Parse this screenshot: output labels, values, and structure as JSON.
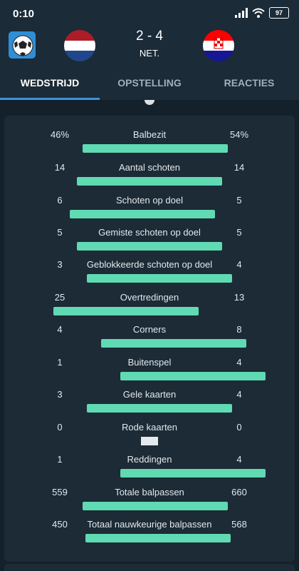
{
  "status_bar": {
    "time": "0:10",
    "battery": "97"
  },
  "match": {
    "score": "2 - 4",
    "status": "NET."
  },
  "tabs": [
    {
      "label": "WEDSTRIJD"
    },
    {
      "label": "OPSTELLING"
    },
    {
      "label": "REACTIES"
    }
  ],
  "stats": [
    {
      "label": "Balbezit",
      "home": "46%",
      "away": "54%"
    },
    {
      "label": "Aantal schoten",
      "home": "14",
      "away": "14"
    },
    {
      "label": "Schoten op doel",
      "home": "6",
      "away": "5"
    },
    {
      "label": "Gemiste schoten op doel",
      "home": "5",
      "away": "5"
    },
    {
      "label": "Geblokkeerde schoten op doel",
      "home": "3",
      "away": "4"
    },
    {
      "label": "Overtredingen",
      "home": "25",
      "away": "13"
    },
    {
      "label": "Corners",
      "home": "4",
      "away": "8"
    },
    {
      "label": "Buitenspel",
      "home": "1",
      "away": "4"
    },
    {
      "label": "Gele kaarten",
      "home": "3",
      "away": "4"
    },
    {
      "label": "Rode kaarten",
      "home": "0",
      "away": "0"
    },
    {
      "label": "Reddingen",
      "home": "1",
      "away": "4"
    },
    {
      "label": "Totale balpassen",
      "home": "559",
      "away": "660"
    },
    {
      "label": "Totaal nauwkeurige balpassen",
      "home": "450",
      "away": "568"
    }
  ],
  "colors": {
    "bar": "#60dab3",
    "tab_indicator": "#3d93dc",
    "background": "#14212b"
  },
  "icons": {
    "app_logo": "soccer-ball-icon",
    "home_flag": "netherlands-flag-icon",
    "away_flag": "croatia-flag-icon"
  }
}
